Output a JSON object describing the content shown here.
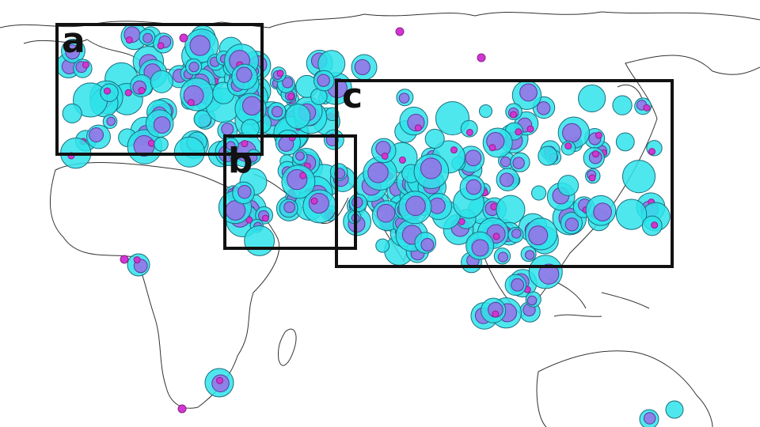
{
  "regions": [
    {
      "label": "a"
    },
    {
      "label": "b"
    },
    {
      "label": "c"
    }
  ]
}
